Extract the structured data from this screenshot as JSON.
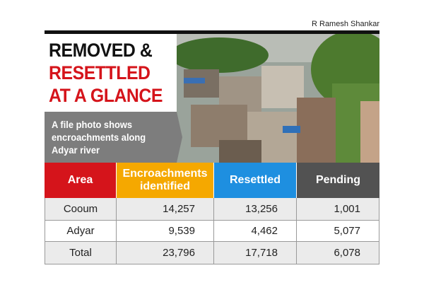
{
  "credit": "R Ramesh Shankar",
  "title": {
    "lines": [
      "REMOVED &",
      "RESETTLED",
      "AT A GLANCE"
    ]
  },
  "caption": {
    "lines": [
      "A file photo shows",
      "encroachments along",
      "Adyar river"
    ]
  },
  "table": {
    "header": [
      "Area",
      "Encroachments identified",
      "Resettled",
      "Pending"
    ],
    "rows": [
      [
        "Cooum",
        "14,257",
        "13,256",
        "1,001"
      ],
      [
        "Adyar",
        "9,539",
        "4,462",
        "5,077"
      ],
      [
        "Total",
        "23,796",
        "17,718",
        "6,078"
      ]
    ]
  }
}
